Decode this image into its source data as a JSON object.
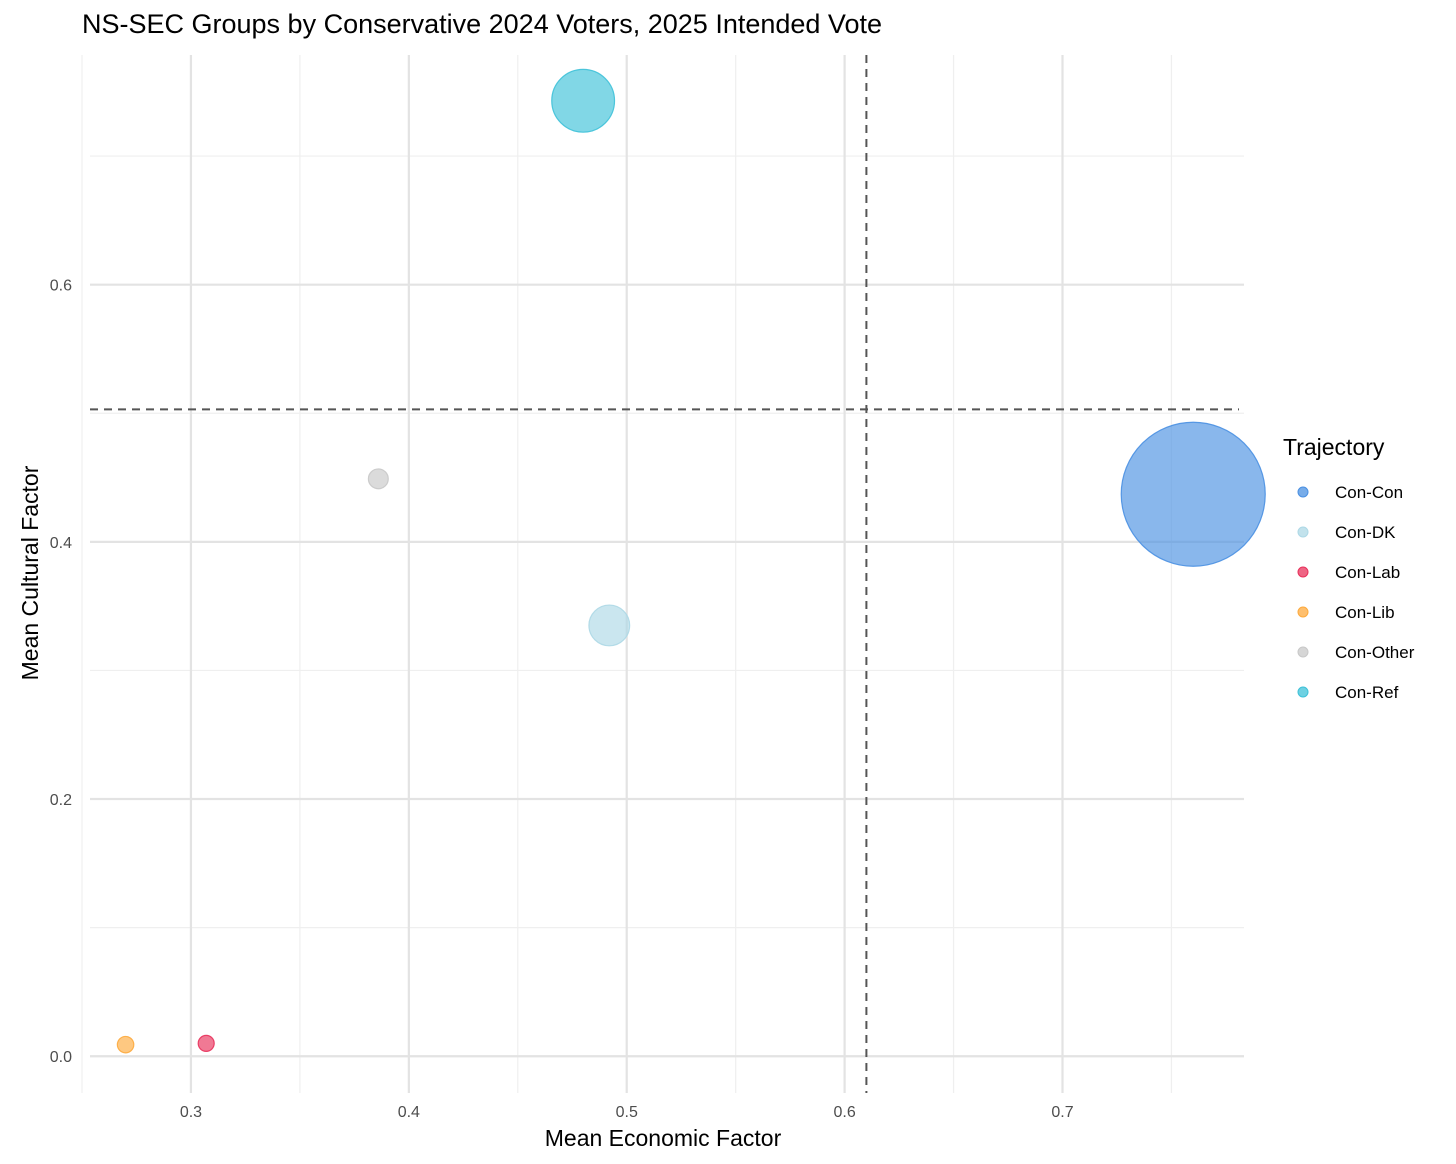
{
  "chart_data": {
    "type": "scatter",
    "title": "NS-SEC Groups by Conservative 2024 Voters, 2025 Intended Vote",
    "xlabel": "Mean Economic Factor",
    "ylabel": "Mean Cultural Factor",
    "xlim": [
      0.25,
      0.7833
    ],
    "ylim": [
      -0.0286,
      0.7786
    ],
    "x_ticks": [
      0.3,
      0.4,
      0.5,
      0.6,
      0.7
    ],
    "x_tick_labels": [
      "0.3",
      "0.4",
      "0.5",
      "0.6",
      "0.7"
    ],
    "y_ticks": [
      0.0,
      0.2,
      0.4,
      0.6
    ],
    "y_tick_labels": [
      "0.0",
      "0.2",
      "0.4",
      "0.6"
    ],
    "grid": true,
    "reference_lines": {
      "x": 0.61,
      "y": 0.503,
      "style": "dashed"
    },
    "legend": {
      "title": "Trajectory",
      "position": "right"
    },
    "series": [
      {
        "name": "Con-Con",
        "color": "#4A90E2",
        "x": 0.76,
        "y": 0.437,
        "size": 1.0
      },
      {
        "name": "Con-DK",
        "color": "#ADD8E6",
        "x": 0.492,
        "y": 0.335,
        "size": 0.08
      },
      {
        "name": "Con-Lab",
        "color": "#E8315B",
        "x": 0.307,
        "y": 0.01,
        "size": 0.01
      },
      {
        "name": "Con-Lib",
        "color": "#FDAA3D",
        "x": 0.27,
        "y": 0.009,
        "size": 0.013
      },
      {
        "name": "Con-Other",
        "color": "#C8C8C8",
        "x": 0.386,
        "y": 0.449,
        "size": 0.019
      },
      {
        "name": "Con-Ref",
        "color": "#3EC1D8",
        "x": 0.48,
        "y": 0.743,
        "size": 0.19
      }
    ]
  }
}
